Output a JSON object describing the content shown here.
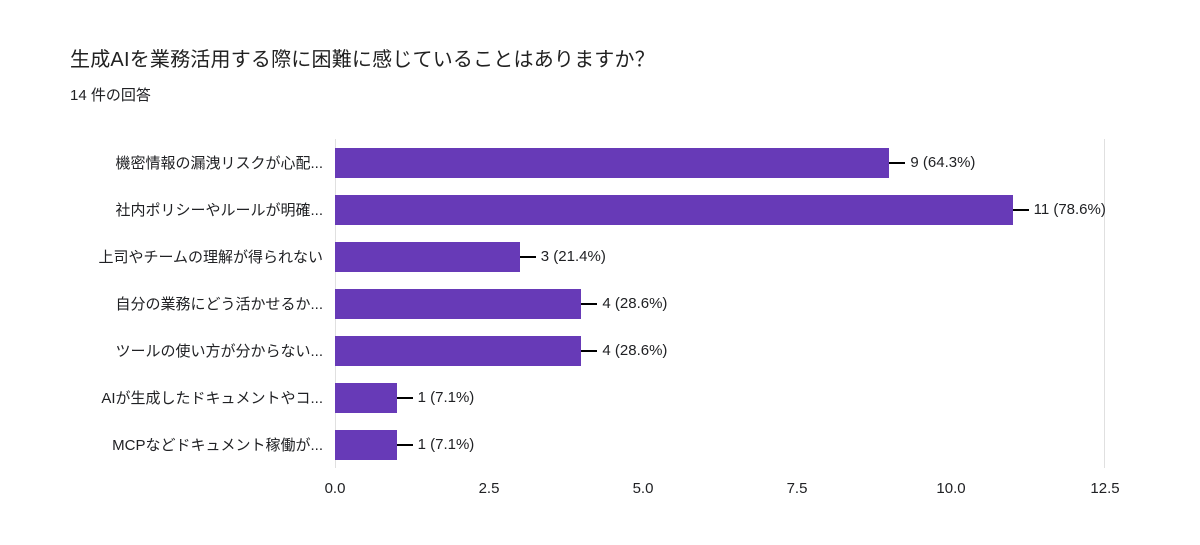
{
  "colors": {
    "bar": "#673ab7",
    "whisker": "#000000",
    "plot_border": "#e0e0e0",
    "text": "#202124"
  },
  "chart_data": {
    "type": "bar",
    "orientation": "horizontal",
    "title": "生成AIを業務活用する際に困難に感じていることはありますか？",
    "subtitle": "14 件の回答",
    "categories": [
      "機密情報の漏洩リスクが心配...",
      "社内ポリシーやルールが明確...",
      "上司やチームの理解が得られない",
      "自分の業務にどう活かせるか...",
      "ツールの使い方が分からない...",
      "AIが生成したドキュメントやコ...",
      "MCPなどドキュメント稼働が..."
    ],
    "values": [
      9,
      11,
      3,
      4,
      4,
      1,
      1
    ],
    "value_labels": [
      "9 (64.3%)",
      "11 (78.6%)",
      "3 (21.4%)",
      "4 (28.6%)",
      "4 (28.6%)",
      "1 (7.1%)",
      "1 (7.1%)"
    ],
    "total_responses": 14,
    "xlim": [
      0,
      12.5
    ],
    "x_ticks": [
      0,
      2.5,
      5,
      7.5,
      10,
      12.5
    ],
    "x_tick_labels": [
      "0.0",
      "2.5",
      "5.0",
      "7.5",
      "10.0",
      "12.5"
    ],
    "grid": false,
    "legend": false
  }
}
